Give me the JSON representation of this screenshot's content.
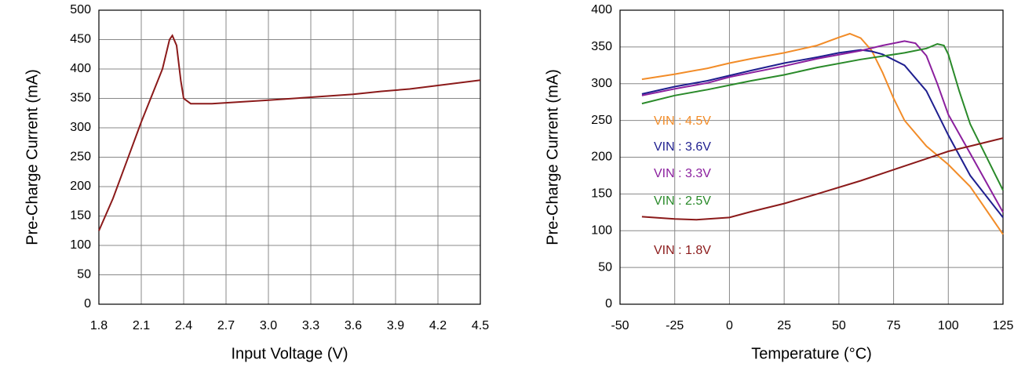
{
  "chart_data": [
    {
      "type": "line",
      "x_label": "Input Voltage (V)",
      "y_label": "Pre-Charge Current (mA)",
      "x": [
        1.8,
        1.9,
        2.0,
        2.1,
        2.2,
        2.25,
        2.3,
        2.32,
        2.35,
        2.38,
        2.4,
        2.45,
        2.6,
        2.8,
        3.0,
        3.3,
        3.6,
        3.8,
        4.0,
        4.2,
        4.5
      ],
      "series": [
        {
          "color": "#8b1a1a",
          "values": [
            125,
            180,
            245,
            310,
            370,
            400,
            450,
            457,
            440,
            380,
            350,
            341,
            341,
            344,
            347,
            352,
            357,
            362,
            366,
            372,
            381
          ]
        }
      ],
      "xlim": [
        1.8,
        4.5
      ],
      "xticks": [
        1.8,
        2.1,
        2.4,
        2.7,
        {
          "value": 3,
          "label": "3.0"
        },
        3.3,
        3.6,
        3.9,
        4.2,
        4.5
      ],
      "ylim": [
        0,
        500
      ],
      "yticks": [
        0,
        50,
        100,
        150,
        200,
        250,
        300,
        350,
        400,
        450,
        500
      ],
      "grid": true
    },
    {
      "type": "line",
      "x_label": "Temperature (°C)",
      "y_label": "Pre-Charge Current (mA)",
      "series": [
        {
          "name": "VIN : 4.5V",
          "color": "#f28c28",
          "x": [
            -40,
            -25,
            -10,
            0,
            10,
            25,
            40,
            50,
            55,
            60,
            65,
            70,
            75,
            80,
            90,
            100,
            110,
            125
          ],
          "values": [
            306,
            313,
            321,
            328,
            334,
            342,
            352,
            363,
            368,
            362,
            345,
            315,
            280,
            250,
            215,
            190,
            160,
            95
          ]
        },
        {
          "name": "VIN : 3.6V",
          "color": "#1f1f8f",
          "x": [
            -40,
            -25,
            -10,
            0,
            10,
            25,
            40,
            50,
            60,
            65,
            70,
            80,
            90,
            100,
            110,
            125
          ],
          "values": [
            286,
            296,
            304,
            311,
            318,
            328,
            336,
            342,
            346,
            344,
            340,
            325,
            290,
            230,
            175,
            118
          ]
        },
        {
          "name": "VIN : 3.3V",
          "color": "#8b1f9e",
          "x": [
            -40,
            -25,
            -10,
            0,
            10,
            25,
            40,
            60,
            70,
            80,
            85,
            90,
            95,
            100,
            110,
            125
          ],
          "values": [
            284,
            293,
            301,
            309,
            315,
            324,
            334,
            345,
            352,
            358,
            355,
            338,
            300,
            258,
            205,
            125
          ]
        },
        {
          "name": "VIN : 2.5V",
          "color": "#2a8a2a",
          "x": [
            -40,
            -25,
            -10,
            0,
            10,
            25,
            40,
            60,
            80,
            90,
            95,
            98,
            100,
            105,
            110,
            125
          ],
          "values": [
            273,
            284,
            292,
            298,
            304,
            312,
            322,
            333,
            342,
            348,
            354,
            352,
            340,
            290,
            245,
            155
          ]
        },
        {
          "name": "VIN : 1.8V",
          "color": "#8b1a1a",
          "x": [
            -40,
            -25,
            -15,
            0,
            10,
            25,
            40,
            60,
            75,
            90,
            100,
            110,
            125
          ],
          "values": [
            119,
            116,
            115,
            118,
            126,
            137,
            150,
            168,
            183,
            198,
            208,
            215,
            226
          ]
        }
      ],
      "xlim": [
        -50,
        125
      ],
      "xticks": [
        -50,
        -25,
        0,
        25,
        50,
        75,
        100,
        125
      ],
      "ylim": [
        0,
        400
      ],
      "yticks": [
        0,
        50,
        100,
        150,
        200,
        250,
        300,
        350,
        400
      ],
      "grid": true
    }
  ]
}
